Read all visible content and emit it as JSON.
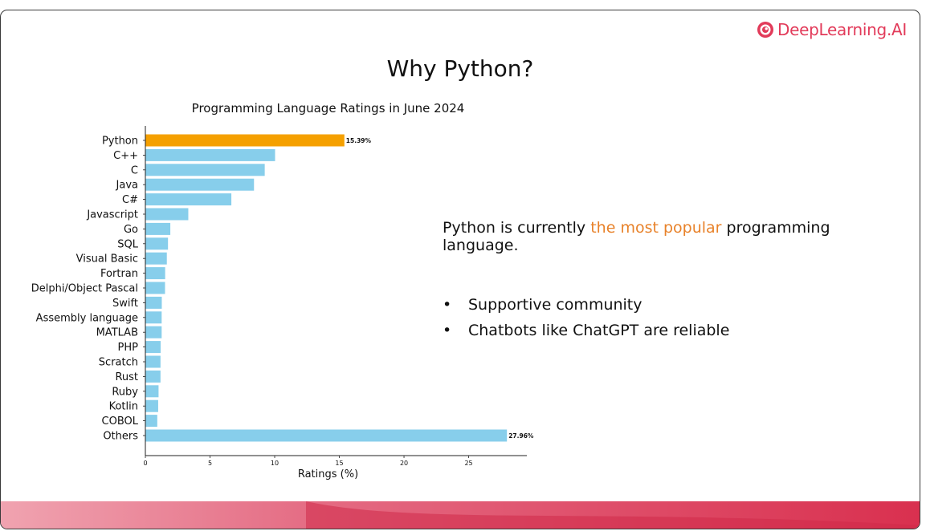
{
  "logo": {
    "text": "DeepLearning.AI",
    "icon": "deeplearning-ai-logo-icon",
    "color": "#e23b5a"
  },
  "slide": {
    "title": "Why Python?",
    "body": {
      "prefix": "Python is currently ",
      "highlight": "the most popular",
      "suffix": " programming language."
    },
    "bullets": [
      "Supportive community",
      "Chatbots like ChatGPT are reliable"
    ]
  },
  "colors": {
    "highlight_bar": "#f5a000",
    "bar": "#87ceeb",
    "highlight_text": "#e8822a",
    "footer": "#dc3a55"
  },
  "chart_data": {
    "type": "bar",
    "orientation": "horizontal",
    "title": "Programming Language Ratings in June 2024",
    "xlabel": "Ratings (%)",
    "ylabel": "",
    "xlim": [
      0,
      29.5
    ],
    "xticks": [
      0,
      5,
      10,
      15,
      20,
      25
    ],
    "categories": [
      "Python",
      "C++",
      "C",
      "Java",
      "C#",
      "Javascript",
      "Go",
      "SQL",
      "Visual Basic",
      "Fortran",
      "Delphi/Object Pascal",
      "Swift",
      "Assembly language",
      "MATLAB",
      "PHP",
      "Scratch",
      "Rust",
      "Ruby",
      "Kotlin",
      "COBOL",
      "Others"
    ],
    "values": [
      15.39,
      10.03,
      9.23,
      8.4,
      6.65,
      3.32,
      1.93,
      1.75,
      1.66,
      1.53,
      1.52,
      1.27,
      1.26,
      1.26,
      1.18,
      1.17,
      1.17,
      1.02,
      0.99,
      0.92,
      27.96
    ],
    "data_labels": [
      "15.39%",
      "",
      "",
      "",
      "",
      "",
      "",
      "",
      "",
      "",
      "",
      "",
      "",
      "",
      "",
      "",
      "",
      "",
      "",
      "",
      "27.96%"
    ],
    "highlight_category": "Python",
    "grid": false,
    "legend": "none"
  }
}
